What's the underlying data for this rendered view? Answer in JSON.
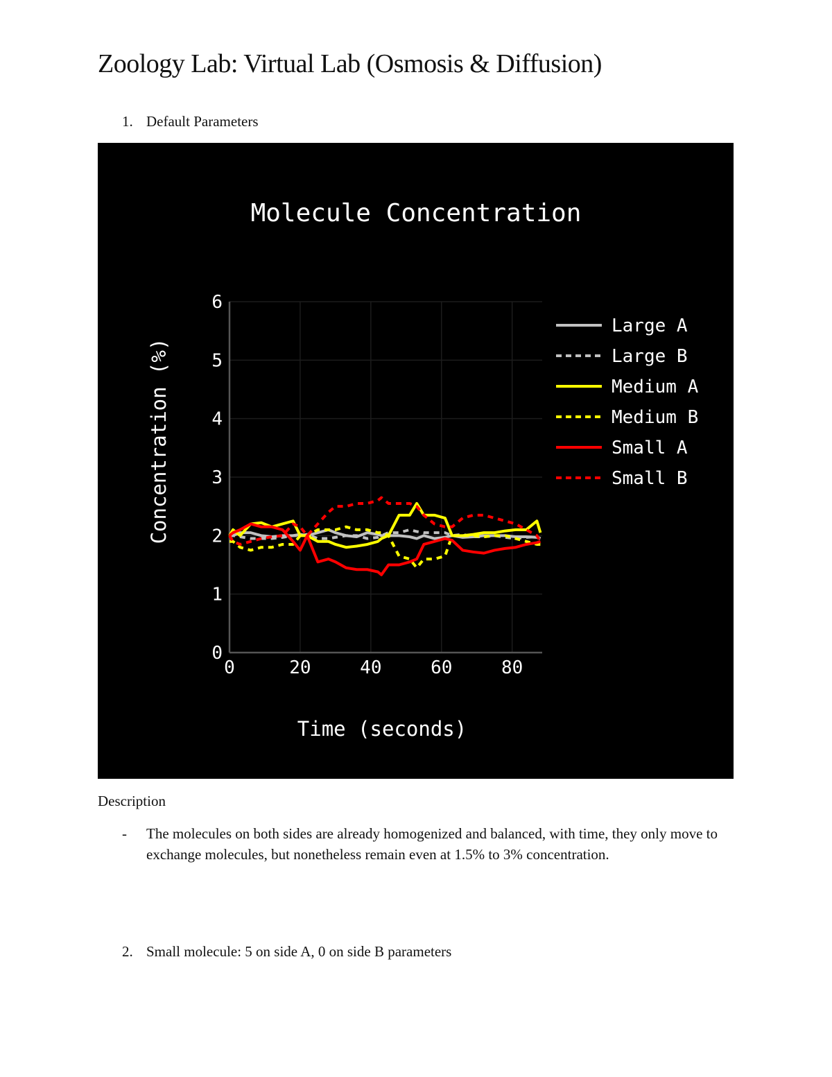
{
  "document": {
    "title": "Zoology Lab: Virtual Lab (Osmosis & Diffusion)",
    "sections": [
      {
        "number": "1.",
        "heading": "Default Parameters"
      },
      {
        "number": "2.",
        "heading": "Small molecule: 5 on side A, 0 on side B parameters"
      }
    ],
    "description": {
      "heading": "Description",
      "bullet_marker": "-",
      "text": "The molecules on both sides are already homogenized and balanced, with time, they only move to exchange molecules, but nonetheless remain even at 1.5% to 3% concentration."
    }
  },
  "chart_data": {
    "type": "line",
    "title": "Molecule Concentration",
    "xlabel": "Time (seconds)",
    "ylabel": "Concentration (%)",
    "xlim": [
      0,
      88.5
    ],
    "ylim": [
      0,
      6
    ],
    "xticks": [
      0,
      20,
      40,
      60,
      80
    ],
    "yticks": [
      0,
      1,
      2,
      3,
      4,
      5,
      6
    ],
    "grid": true,
    "legend_position": "right",
    "background": "#000000",
    "x": [
      0,
      1,
      3,
      6,
      9,
      12,
      15,
      18,
      20,
      22,
      25,
      28,
      30,
      33,
      36,
      39,
      42,
      43,
      45,
      48,
      51,
      53,
      55,
      58,
      61,
      63,
      66,
      69,
      72,
      75,
      78,
      81,
      84,
      87,
      88
    ],
    "series": [
      {
        "name": "Large A",
        "color": "#c0c0c0",
        "dash": "solid",
        "values": [
          2.0,
          2.0,
          2.05,
          2.05,
          2.0,
          1.98,
          2.0,
          2.0,
          2.02,
          2.0,
          2.05,
          2.1,
          2.05,
          2.0,
          1.98,
          2.05,
          2.02,
          2.0,
          2.0,
          2.0,
          1.98,
          1.95,
          2.0,
          1.95,
          1.97,
          2.0,
          1.97,
          1.98,
          2.0,
          2.0,
          2.0,
          1.98,
          1.98,
          1.97,
          1.95
        ]
      },
      {
        "name": "Large B",
        "color": "#c0c0c0",
        "dash": "dot",
        "values": [
          2.0,
          2.0,
          1.98,
          1.95,
          1.95,
          1.95,
          1.97,
          2.0,
          2.0,
          2.02,
          1.95,
          1.95,
          1.97,
          2.0,
          2.0,
          1.95,
          1.97,
          2.0,
          2.05,
          2.05,
          2.1,
          2.07,
          2.05,
          2.05,
          2.05,
          2.0,
          2.02,
          1.98,
          1.98,
          2.0,
          1.97,
          1.95,
          1.97,
          1.98,
          1.95
        ]
      },
      {
        "name": "Medium A",
        "color": "#ffff00",
        "dash": "solid",
        "values": [
          2.0,
          2.1,
          2.0,
          2.2,
          2.22,
          2.15,
          2.2,
          2.25,
          2.0,
          2.0,
          1.9,
          1.9,
          1.85,
          1.8,
          1.82,
          1.85,
          1.9,
          1.95,
          2.0,
          2.35,
          2.35,
          2.55,
          2.35,
          2.35,
          2.3,
          2.0,
          2.0,
          2.02,
          2.05,
          2.05,
          2.08,
          2.1,
          2.1,
          2.25,
          2.05
        ]
      },
      {
        "name": "Medium B",
        "color": "#ffff00",
        "dash": "dot",
        "values": [
          1.9,
          1.9,
          1.8,
          1.75,
          1.8,
          1.8,
          1.85,
          1.85,
          2.0,
          2.0,
          2.1,
          2.1,
          2.1,
          2.15,
          2.1,
          2.1,
          2.05,
          2.05,
          2.0,
          1.65,
          1.6,
          1.45,
          1.6,
          1.6,
          1.65,
          2.0,
          2.0,
          2.0,
          1.98,
          2.0,
          2.0,
          1.95,
          1.9,
          1.85,
          1.85
        ]
      },
      {
        "name": "Small A",
        "color": "#ff0000",
        "dash": "solid",
        "values": [
          2.0,
          2.05,
          2.1,
          2.2,
          2.15,
          2.15,
          2.1,
          1.9,
          1.75,
          2.0,
          1.55,
          1.6,
          1.55,
          1.45,
          1.42,
          1.42,
          1.38,
          1.33,
          1.5,
          1.5,
          1.55,
          1.6,
          1.85,
          1.9,
          1.95,
          1.92,
          1.75,
          1.72,
          1.7,
          1.75,
          1.78,
          1.8,
          1.85,
          1.88,
          1.9
        ]
      },
      {
        "name": "Small B",
        "color": "#ff0000",
        "dash": "dot",
        "values": [
          2.0,
          1.9,
          1.85,
          1.9,
          1.95,
          1.98,
          2.0,
          2.2,
          2.15,
          2.0,
          2.2,
          2.4,
          2.5,
          2.5,
          2.55,
          2.55,
          2.6,
          2.65,
          2.55,
          2.55,
          2.55,
          2.5,
          2.35,
          2.2,
          2.15,
          2.15,
          2.3,
          2.35,
          2.35,
          2.3,
          2.25,
          2.2,
          2.1,
          2.0,
          1.9
        ]
      }
    ]
  }
}
